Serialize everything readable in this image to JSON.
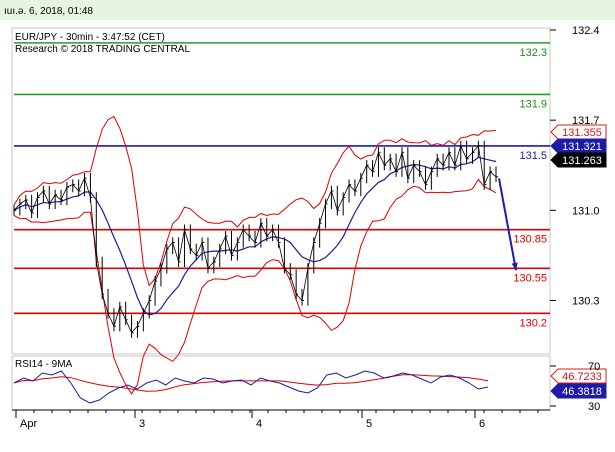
{
  "header": {
    "timestamp": "ıuı.ə. 6, 2018, 01:48",
    "title": "EUR/JPY - 30min - 3:47:52 (CET)",
    "research": "Research © 2018 TRADING CENTRAL"
  },
  "colors": {
    "header_bar": "#e6f5e0",
    "frame": "#c8c8c8",
    "green_line": "#2a9a2a",
    "green_text": "#1e8a1e",
    "blue_line": "#1c1cae",
    "red_line": "#e00000",
    "bands": "#e00000",
    "ma": "#1c1c9c",
    "price": "#000000",
    "rsi": "#1c1c9c",
    "rsi_ma": "#e00000",
    "tag_red": "#d81818",
    "tag_blue": "#1c1ca8",
    "tag_black": "#000000"
  },
  "chart_data": [
    {
      "type": "line",
      "title": "EUR/JPY - 30min - 3:47:52 (CET)",
      "subtitle": "Research © 2018 TRADING CENTRAL",
      "x_ticks": [
        "Apr",
        "3",
        "4",
        "5",
        "6"
      ],
      "ylim": [
        129.9,
        132.4
      ],
      "y_ticks": [
        "132.4",
        "131.7",
        "131.0",
        "130.3"
      ],
      "levels": [
        {
          "value": 132.3,
          "label": "132.3",
          "color": "green"
        },
        {
          "value": 131.9,
          "label": "131.9",
          "color": "green"
        },
        {
          "value": 131.5,
          "label": "131.5",
          "color": "blue"
        },
        {
          "value": 130.85,
          "label": "130.85",
          "color": "red"
        },
        {
          "value": 130.55,
          "label": "130.55",
          "color": "red"
        },
        {
          "value": 130.2,
          "label": "130.2",
          "color": "red"
        }
      ],
      "price_tags": [
        {
          "value": 131.355,
          "label": "131.355",
          "style": "red"
        },
        {
          "value": 131.321,
          "label": "131.321",
          "style": "blue"
        },
        {
          "value": 131.263,
          "label": "131.263",
          "style": "black"
        }
      ],
      "close_series": [
        131.0,
        131.05,
        131.08,
        130.98,
        131.1,
        131.15,
        131.05,
        131.12,
        131.08,
        131.18,
        131.2,
        131.15,
        131.25,
        131.1,
        130.6,
        130.35,
        130.2,
        130.1,
        130.25,
        130.15,
        130.05,
        130.1,
        130.2,
        130.3,
        130.45,
        130.55,
        130.7,
        130.75,
        130.6,
        130.85,
        130.7,
        130.65,
        130.75,
        130.55,
        130.6,
        130.7,
        130.8,
        130.65,
        130.75,
        130.85,
        130.8,
        130.75,
        130.9,
        130.8,
        130.85,
        130.75,
        130.55,
        130.5,
        130.35,
        130.3,
        130.55,
        130.75,
        130.9,
        131.05,
        131.15,
        131.0,
        131.1,
        131.2,
        131.15,
        131.25,
        131.35,
        131.3,
        131.45,
        131.35,
        131.4,
        131.3,
        131.45,
        131.25,
        131.35,
        131.3,
        131.2,
        131.3,
        131.4,
        131.35,
        131.45,
        131.35,
        131.5,
        131.4,
        131.45,
        131.5,
        131.2,
        131.3,
        131.26
      ],
      "forecast": {
        "from": 131.263,
        "to": 130.55
      },
      "rsi": {
        "title": "RSI14 - 9MA",
        "ylim": [
          25,
          75
        ],
        "y_ticks": [
          "70",
          "30"
        ],
        "tags": [
          {
            "value": 46.7233,
            "label": "46.7233",
            "style": "red"
          },
          {
            "value": 46.3818,
            "label": "46.3818",
            "style": "blue"
          }
        ],
        "series": [
          50,
          55,
          52,
          60,
          58,
          62,
          50,
          35,
          30,
          33,
          40,
          45,
          48,
          44,
          50,
          53,
          48,
          55,
          52,
          50,
          55,
          54,
          50,
          52,
          53,
          48,
          55,
          52,
          50,
          46,
          42,
          40,
          45,
          58,
          60,
          55,
          58,
          62,
          60,
          55,
          57,
          60,
          58,
          54,
          50,
          56,
          58,
          55,
          50,
          44,
          46
        ]
      }
    }
  ]
}
